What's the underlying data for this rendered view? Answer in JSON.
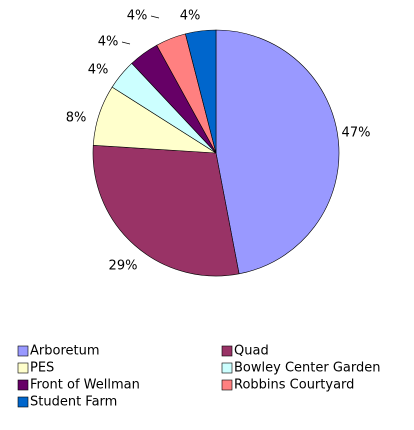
{
  "chart_data": {
    "type": "pie",
    "categories": [
      "Arboretum",
      "Quad",
      "PES",
      "Bowley Center Garden",
      "Front of Wellman",
      "Robbins Courtyard",
      "Student Farm"
    ],
    "values": [
      47,
      29,
      8,
      4,
      4,
      4,
      4
    ],
    "value_labels": [
      "47%",
      "29%",
      "8%",
      "4%",
      "4%",
      "4%",
      "4%"
    ],
    "colors": [
      "#9999ff",
      "#993366",
      "#ffffcc",
      "#ccffff",
      "#660066",
      "#ff8080",
      "#0066cc"
    ],
    "legend": "bottom"
  }
}
